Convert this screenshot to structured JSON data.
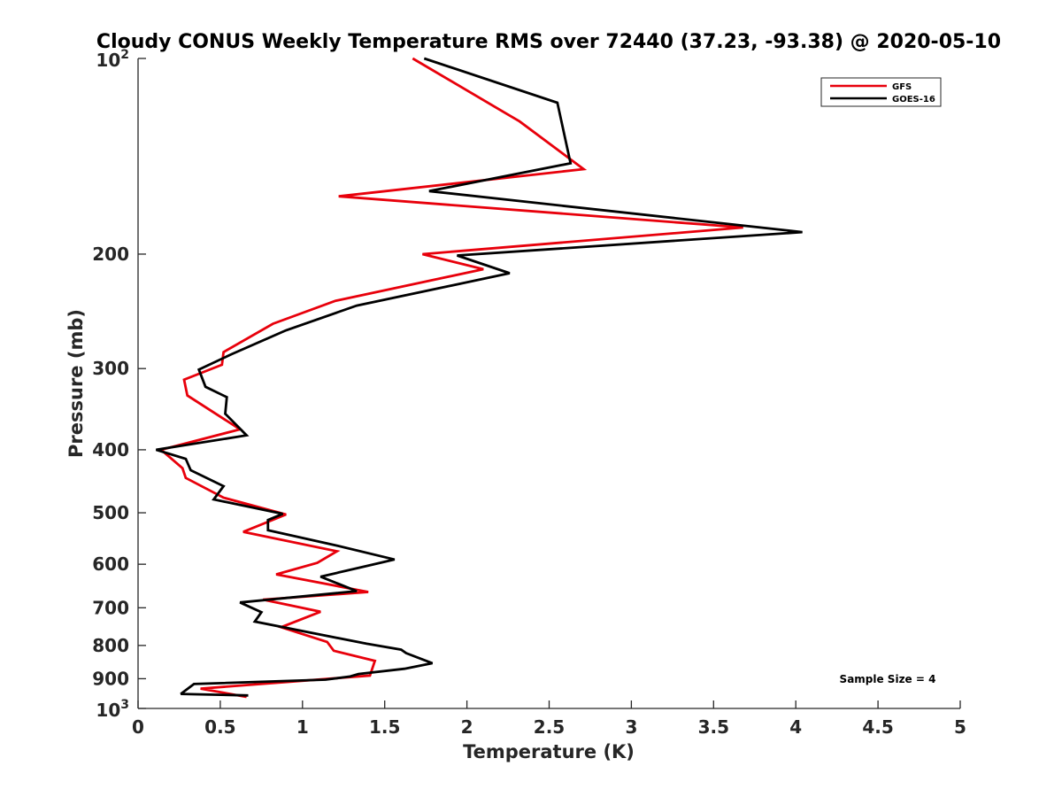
{
  "chart_data": {
    "type": "line",
    "title": "Cloudy CONUS Weekly Temperature RMS over 72440 (37.23, -93.38) @ 2020-05-10",
    "xlabel": "Temperature (K)",
    "ylabel": "Pressure (mb)",
    "xlim": [
      0,
      5
    ],
    "ylim": [
      100,
      1000
    ],
    "yscale": "log",
    "y_reversed": true,
    "grid": false,
    "legend_position": "top-right",
    "xticks": [
      "0",
      "0.5",
      "1",
      "1.5",
      "2",
      "2.5",
      "3",
      "3.5",
      "4",
      "4.5",
      "5"
    ],
    "yticks": [
      {
        "value": 100,
        "base": "10",
        "exp": "2"
      },
      {
        "value": 200,
        "label": "200"
      },
      {
        "value": 300,
        "label": "300"
      },
      {
        "value": 400,
        "label": "400"
      },
      {
        "value": 500,
        "label": "500"
      },
      {
        "value": 600,
        "label": "600"
      },
      {
        "value": 700,
        "label": "700"
      },
      {
        "value": 800,
        "label": "800"
      },
      {
        "value": 900,
        "label": "900"
      },
      {
        "value": 1000,
        "base": "10",
        "exp": "3"
      }
    ],
    "annotation": "Sample Size = 4",
    "series": [
      {
        "name": "GFS",
        "color": "#e8000b",
        "x": [
          1.67,
          2.32,
          2.71,
          1.22,
          3.68,
          1.73,
          2.1,
          1.2,
          0.82,
          0.52,
          0.51,
          0.28,
          0.3,
          0.62,
          0.14,
          0.27,
          0.29,
          0.52,
          0.9,
          0.64,
          1.21,
          1.09,
          0.84,
          1.4,
          0.76,
          1.11,
          0.87,
          1.15,
          1.19,
          1.44,
          1.41,
          0.38,
          0.66
        ],
        "y": [
          100,
          125,
          148,
          163,
          182,
          200,
          211,
          236,
          256,
          283,
          296,
          312,
          330,
          372,
          400,
          427,
          442,
          474,
          503,
          535,
          573,
          597,
          622,
          662,
          680,
          710,
          750,
          790,
          815,
          845,
          890,
          932,
          960
        ]
      },
      {
        "name": "GOES-16",
        "color": "#000000",
        "x": [
          1.74,
          2.55,
          2.63,
          1.77,
          4.04,
          1.94,
          2.26,
          1.33,
          0.9,
          0.57,
          0.37,
          0.41,
          0.54,
          0.53,
          0.66,
          0.11,
          0.29,
          0.32,
          0.52,
          0.46,
          0.88,
          0.79,
          0.79,
          1.2,
          1.56,
          1.35,
          1.11,
          1.33,
          0.62,
          0.75,
          0.71,
          1.39,
          1.6,
          1.63,
          1.79,
          1.62,
          1.34,
          1.29,
          1.14,
          0.34,
          0.26,
          0.67
        ],
        "y": [
          100,
          117,
          145,
          160,
          185,
          201,
          214,
          240,
          262,
          285,
          301,
          320,
          332,
          352,
          380,
          400,
          413,
          430,
          455,
          477,
          502,
          513,
          532,
          561,
          590,
          607,
          627,
          660,
          687,
          711,
          735,
          795,
          812,
          822,
          852,
          869,
          885,
          893,
          903,
          917,
          950,
          955
        ]
      }
    ]
  }
}
